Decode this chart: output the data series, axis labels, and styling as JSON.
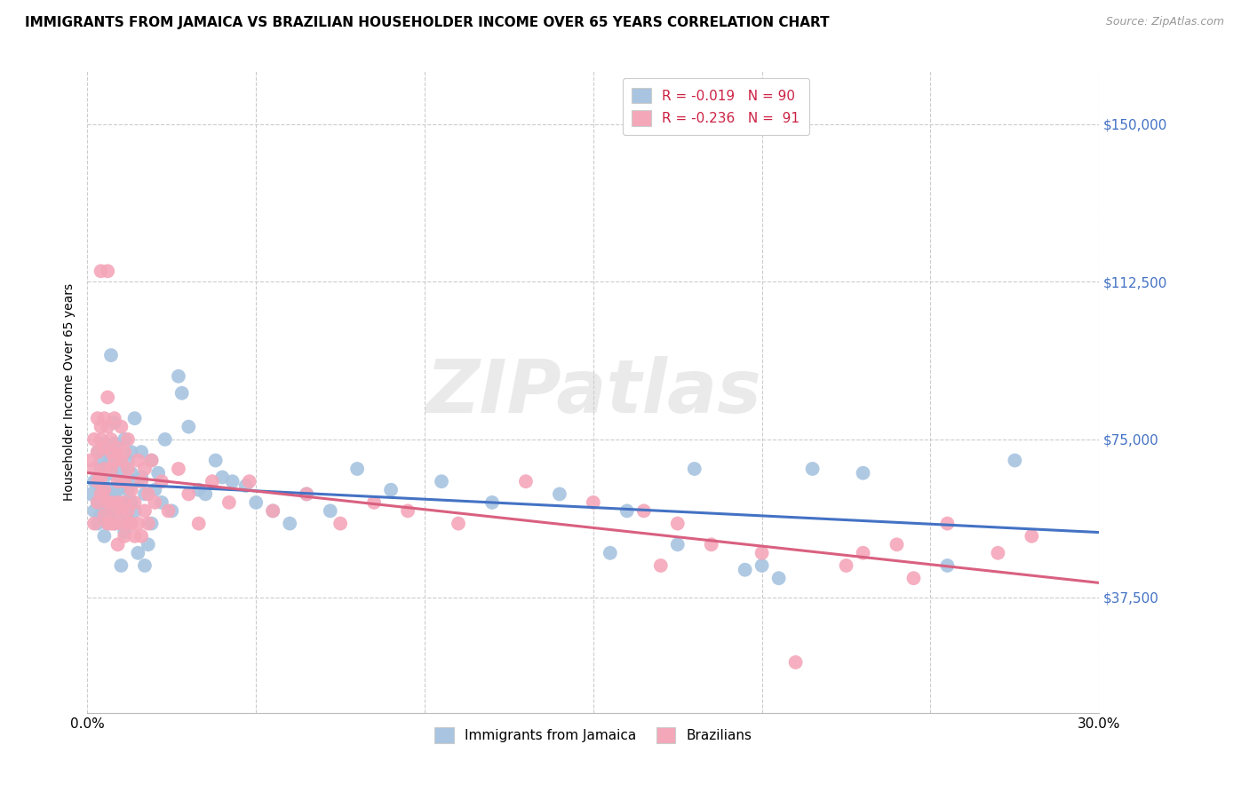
{
  "title": "IMMIGRANTS FROM JAMAICA VS BRAZILIAN HOUSEHOLDER INCOME OVER 65 YEARS CORRELATION CHART",
  "source": "Source: ZipAtlas.com",
  "ylabel": "Householder Income Over 65 years",
  "ytick_labels": [
    "$37,500",
    "$75,000",
    "$112,500",
    "$150,000"
  ],
  "ytick_values": [
    37500,
    75000,
    112500,
    150000
  ],
  "ylim": [
    10000,
    162500
  ],
  "xlim": [
    0.0,
    0.3
  ],
  "legend_entries_line1": "R = -0.019   N = 90",
  "legend_entries_line2": "R = -0.236   N =  91",
  "legend_bottom": [
    "Immigrants from Jamaica",
    "Brazilians"
  ],
  "line_color_jamaica": "#4472c4",
  "line_color_brazil": "#d96080",
  "scatter_color_jamaica": "#a8c4e0",
  "scatter_color_brazil": "#f4a7b9",
  "background_color": "#ffffff",
  "grid_color": "#cccccc",
  "watermark": "ZIPatlas",
  "jamaica_points": [
    [
      0.001,
      62000
    ],
    [
      0.002,
      58000
    ],
    [
      0.002,
      65000
    ],
    [
      0.003,
      55000
    ],
    [
      0.003,
      72000
    ],
    [
      0.003,
      60000
    ],
    [
      0.004,
      68000
    ],
    [
      0.004,
      63000
    ],
    [
      0.004,
      57000
    ],
    [
      0.004,
      70000
    ],
    [
      0.005,
      52000
    ],
    [
      0.005,
      66000
    ],
    [
      0.005,
      61000
    ],
    [
      0.005,
      58000
    ],
    [
      0.005,
      74000
    ],
    [
      0.006,
      63000
    ],
    [
      0.006,
      55000
    ],
    [
      0.006,
      69000
    ],
    [
      0.006,
      60000
    ],
    [
      0.006,
      72000
    ],
    [
      0.007,
      56000
    ],
    [
      0.007,
      95000
    ],
    [
      0.007,
      61000
    ],
    [
      0.007,
      67000
    ],
    [
      0.007,
      58000
    ],
    [
      0.008,
      74000
    ],
    [
      0.008,
      62000
    ],
    [
      0.008,
      79000
    ],
    [
      0.008,
      55000
    ],
    [
      0.009,
      63000
    ],
    [
      0.009,
      71000
    ],
    [
      0.009,
      58000
    ],
    [
      0.01,
      65000
    ],
    [
      0.01,
      45000
    ],
    [
      0.01,
      68000
    ],
    [
      0.011,
      53000
    ],
    [
      0.011,
      75000
    ],
    [
      0.011,
      60000
    ],
    [
      0.012,
      70000
    ],
    [
      0.012,
      63000
    ],
    [
      0.012,
      56000
    ],
    [
      0.013,
      72000
    ],
    [
      0.013,
      67000
    ],
    [
      0.013,
      60000
    ],
    [
      0.014,
      80000
    ],
    [
      0.014,
      58000
    ],
    [
      0.014,
      65000
    ],
    [
      0.015,
      48000
    ],
    [
      0.016,
      66000
    ],
    [
      0.016,
      72000
    ],
    [
      0.017,
      62000
    ],
    [
      0.017,
      45000
    ],
    [
      0.018,
      50000
    ],
    [
      0.019,
      55000
    ],
    [
      0.019,
      70000
    ],
    [
      0.02,
      63000
    ],
    [
      0.021,
      67000
    ],
    [
      0.022,
      60000
    ],
    [
      0.023,
      75000
    ],
    [
      0.025,
      58000
    ],
    [
      0.027,
      90000
    ],
    [
      0.028,
      86000
    ],
    [
      0.03,
      78000
    ],
    [
      0.033,
      63000
    ],
    [
      0.035,
      62000
    ],
    [
      0.038,
      70000
    ],
    [
      0.04,
      66000
    ],
    [
      0.043,
      65000
    ],
    [
      0.047,
      64000
    ],
    [
      0.05,
      60000
    ],
    [
      0.055,
      58000
    ],
    [
      0.06,
      55000
    ],
    [
      0.065,
      62000
    ],
    [
      0.072,
      58000
    ],
    [
      0.08,
      68000
    ],
    [
      0.09,
      63000
    ],
    [
      0.105,
      65000
    ],
    [
      0.12,
      60000
    ],
    [
      0.14,
      62000
    ],
    [
      0.16,
      58000
    ],
    [
      0.18,
      68000
    ],
    [
      0.2,
      45000
    ],
    [
      0.215,
      68000
    ],
    [
      0.23,
      67000
    ],
    [
      0.255,
      45000
    ],
    [
      0.275,
      70000
    ],
    [
      0.155,
      48000
    ],
    [
      0.175,
      50000
    ],
    [
      0.195,
      44000
    ],
    [
      0.205,
      42000
    ]
  ],
  "brazil_points": [
    [
      0.001,
      70000
    ],
    [
      0.002,
      75000
    ],
    [
      0.002,
      68000
    ],
    [
      0.002,
      55000
    ],
    [
      0.003,
      80000
    ],
    [
      0.003,
      65000
    ],
    [
      0.003,
      72000
    ],
    [
      0.003,
      60000
    ],
    [
      0.004,
      78000
    ],
    [
      0.004,
      66000
    ],
    [
      0.004,
      75000
    ],
    [
      0.004,
      62000
    ],
    [
      0.004,
      115000
    ],
    [
      0.005,
      68000
    ],
    [
      0.005,
      80000
    ],
    [
      0.005,
      57000
    ],
    [
      0.005,
      73000
    ],
    [
      0.005,
      63000
    ],
    [
      0.006,
      85000
    ],
    [
      0.006,
      60000
    ],
    [
      0.006,
      78000
    ],
    [
      0.006,
      55000
    ],
    [
      0.006,
      115000
    ],
    [
      0.007,
      72000
    ],
    [
      0.007,
      68000
    ],
    [
      0.007,
      55000
    ],
    [
      0.007,
      75000
    ],
    [
      0.007,
      60000
    ],
    [
      0.008,
      70000
    ],
    [
      0.008,
      58000
    ],
    [
      0.008,
      80000
    ],
    [
      0.008,
      55000
    ],
    [
      0.009,
      65000
    ],
    [
      0.009,
      50000
    ],
    [
      0.009,
      73000
    ],
    [
      0.009,
      60000
    ],
    [
      0.01,
      78000
    ],
    [
      0.01,
      55000
    ],
    [
      0.01,
      70000
    ],
    [
      0.01,
      58000
    ],
    [
      0.011,
      65000
    ],
    [
      0.011,
      52000
    ],
    [
      0.011,
      72000
    ],
    [
      0.011,
      60000
    ],
    [
      0.012,
      68000
    ],
    [
      0.012,
      55000
    ],
    [
      0.012,
      75000
    ],
    [
      0.012,
      58000
    ],
    [
      0.013,
      63000
    ],
    [
      0.013,
      55000
    ],
    [
      0.014,
      60000
    ],
    [
      0.014,
      52000
    ],
    [
      0.015,
      70000
    ],
    [
      0.015,
      55000
    ],
    [
      0.016,
      65000
    ],
    [
      0.016,
      52000
    ],
    [
      0.017,
      68000
    ],
    [
      0.017,
      58000
    ],
    [
      0.018,
      62000
    ],
    [
      0.018,
      55000
    ],
    [
      0.019,
      70000
    ],
    [
      0.02,
      60000
    ],
    [
      0.022,
      65000
    ],
    [
      0.024,
      58000
    ],
    [
      0.027,
      68000
    ],
    [
      0.03,
      62000
    ],
    [
      0.033,
      55000
    ],
    [
      0.037,
      65000
    ],
    [
      0.042,
      60000
    ],
    [
      0.048,
      65000
    ],
    [
      0.055,
      58000
    ],
    [
      0.065,
      62000
    ],
    [
      0.075,
      55000
    ],
    [
      0.085,
      60000
    ],
    [
      0.095,
      58000
    ],
    [
      0.11,
      55000
    ],
    [
      0.13,
      65000
    ],
    [
      0.15,
      60000
    ],
    [
      0.165,
      58000
    ],
    [
      0.175,
      55000
    ],
    [
      0.185,
      50000
    ],
    [
      0.2,
      48000
    ],
    [
      0.21,
      22000
    ],
    [
      0.225,
      45000
    ],
    [
      0.24,
      50000
    ],
    [
      0.255,
      55000
    ],
    [
      0.27,
      48000
    ],
    [
      0.28,
      52000
    ],
    [
      0.17,
      45000
    ],
    [
      0.23,
      48000
    ],
    [
      0.245,
      42000
    ]
  ]
}
